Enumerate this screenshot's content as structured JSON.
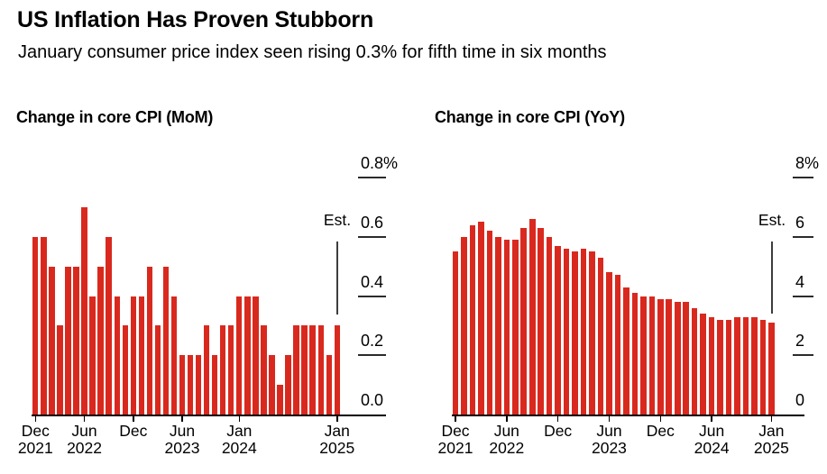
{
  "header": {
    "title": "US Inflation Has Proven Stubborn",
    "subtitle": "January consumer price index seen rising 0.3% for fifth time in six months"
  },
  "colors": {
    "bar_red": "#d9291e",
    "text": "#000000",
    "axis_line": "#000000",
    "tick_line": "#2b2b2b",
    "est_line": "#3d3d3d"
  },
  "chart_data": [
    {
      "type": "bar",
      "title": "Change in core CPI (MoM)",
      "unit": "percent",
      "period_start": "Dec 2021",
      "period_end": "Jan 2025",
      "ylim": [
        0,
        0.8
      ],
      "grid": "off",
      "y_ticks": [
        {
          "label": "0.8%",
          "value": 0.8
        },
        {
          "label": "0.6",
          "value": 0.6
        },
        {
          "label": "0.4",
          "value": 0.4
        },
        {
          "label": "0.2",
          "value": 0.2
        },
        {
          "label": "0.0",
          "value": 0.0
        }
      ],
      "x_ticks": [
        {
          "line1": "Dec",
          "line2": "2021",
          "month_index": 0
        },
        {
          "line1": "Jun",
          "line2": "2022",
          "month_index": 6
        },
        {
          "line1": "Dec",
          "line2": "",
          "month_index": 12
        },
        {
          "line1": "Jun",
          "line2": "2023",
          "month_index": 18
        },
        {
          "line1": "Jan",
          "line2": "2024",
          "month_index": 25
        },
        {
          "line1": "Jan",
          "line2": "2025",
          "month_index": 37
        }
      ],
      "est": {
        "label": "Est.",
        "month_index": 37,
        "value": 0.3
      },
      "values": [
        0.6,
        0.6,
        0.5,
        0.3,
        0.5,
        0.5,
        0.7,
        0.4,
        0.5,
        0.6,
        0.4,
        0.3,
        0.4,
        0.4,
        0.5,
        0.3,
        0.5,
        0.4,
        0.2,
        0.2,
        0.2,
        0.3,
        0.2,
        0.3,
        0.3,
        0.4,
        0.4,
        0.4,
        0.3,
        0.2,
        0.1,
        0.2,
        0.3,
        0.3,
        0.3,
        0.3,
        0.2,
        0.3
      ]
    },
    {
      "type": "bar",
      "title": "Change in core CPI (YoY)",
      "unit": "percent",
      "period_start": "Dec 2021",
      "period_end": "Jan 2025",
      "ylim": [
        0,
        8
      ],
      "grid": "off",
      "y_ticks": [
        {
          "label": "8%",
          "value": 8
        },
        {
          "label": "6",
          "value": 6
        },
        {
          "label": "4",
          "value": 4
        },
        {
          "label": "2",
          "value": 2
        },
        {
          "label": "0",
          "value": 0
        }
      ],
      "x_ticks": [
        {
          "line1": "Dec",
          "line2": "2021",
          "month_index": 0
        },
        {
          "line1": "Jun",
          "line2": "2022",
          "month_index": 6
        },
        {
          "line1": "Dec",
          "line2": "",
          "month_index": 12
        },
        {
          "line1": "Jun",
          "line2": "2023",
          "month_index": 18
        },
        {
          "line1": "Dec",
          "line2": "",
          "month_index": 24
        },
        {
          "line1": "Jun",
          "line2": "2024",
          "month_index": 30
        },
        {
          "line1": "Jan",
          "line2": "2025",
          "month_index": 37
        }
      ],
      "est": {
        "label": "Est.",
        "month_index": 37,
        "value": 3.1
      },
      "values": [
        5.5,
        6.0,
        6.4,
        6.5,
        6.2,
        6.0,
        5.9,
        5.9,
        6.3,
        6.6,
        6.3,
        6.0,
        5.7,
        5.6,
        5.5,
        5.6,
        5.5,
        5.3,
        4.8,
        4.7,
        4.3,
        4.1,
        4.0,
        4.0,
        3.9,
        3.9,
        3.8,
        3.8,
        3.6,
        3.4,
        3.3,
        3.2,
        3.2,
        3.3,
        3.3,
        3.3,
        3.2,
        3.1
      ]
    }
  ]
}
